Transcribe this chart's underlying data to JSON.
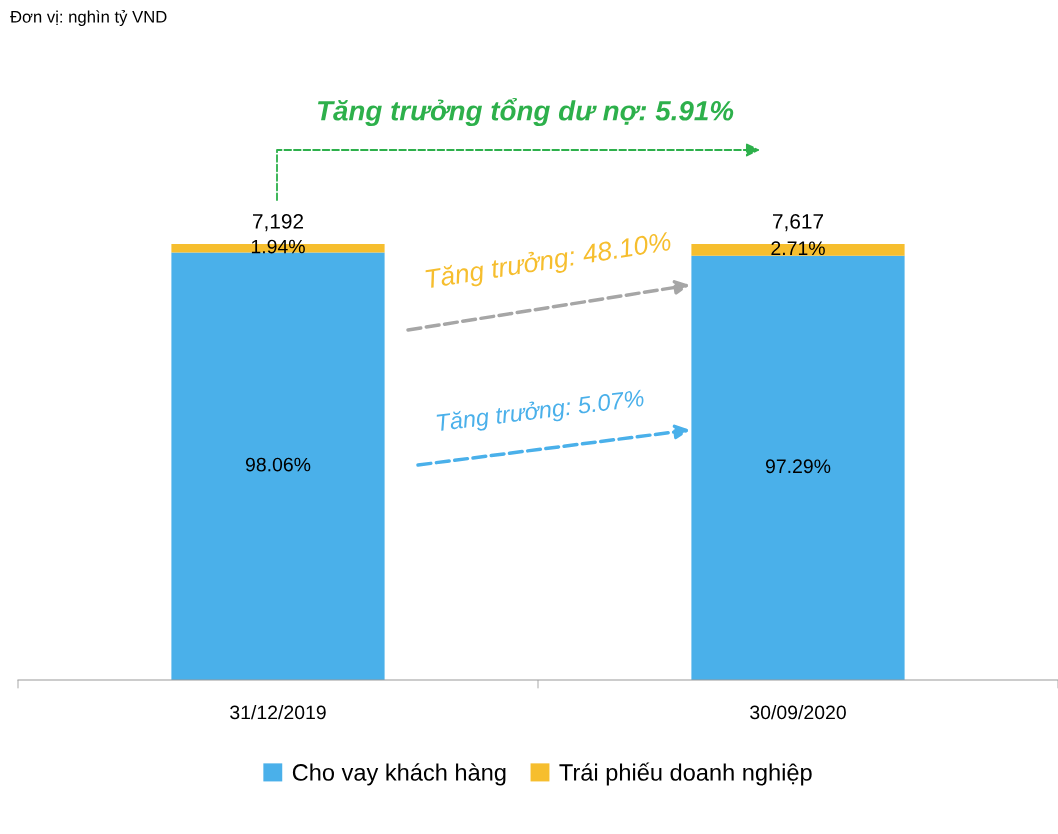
{
  "chart_data": {
    "type": "bar",
    "stacked": true,
    "categories": [
      "31/12/2019",
      "30/09/2020"
    ],
    "series": [
      {
        "name": "Cho vay khách hàng",
        "color": "#4ab0ea",
        "values": [
          98.06,
          97.29
        ],
        "value_labels": [
          "98.06%",
          "97.29%"
        ]
      },
      {
        "name": "Trái phiếu doanh nghiệp",
        "color": "#f6be2e",
        "values": [
          1.94,
          2.71
        ],
        "value_labels": [
          "1.94%",
          "2.71%"
        ]
      }
    ],
    "tick_labels": "x",
    "legend": "bottom",
    "grid": false,
    "annotations": [
      "Đơn vị: nghìn tỷ VND",
      "Tăng trưởng tổng dư nợ: 5.91%",
      "Tăng trưởng: 48.10%",
      "Tăng trưởng: 5.07%",
      "7,192",
      "7,617"
    ]
  }
}
